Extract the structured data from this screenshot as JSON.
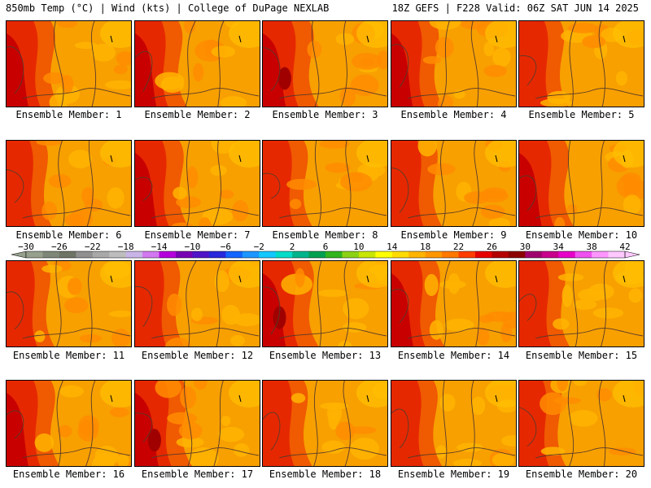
{
  "header": {
    "left": "850mb Temp (°C) | Wind (kts) | College of DuPage NEXLAB",
    "right": "18Z GEFS | F228 Valid: 06Z SAT JUN 14 2025"
  },
  "member_caption_prefix": "Ensemble Member: ",
  "members": [
    {
      "id": 1,
      "heat": 0.85
    },
    {
      "id": 2,
      "heat": 0.8
    },
    {
      "id": 3,
      "heat": 0.95
    },
    {
      "id": 4,
      "heat": 0.8
    },
    {
      "id": 5,
      "heat": 0.7
    },
    {
      "id": 6,
      "heat": 0.55
    },
    {
      "id": 7,
      "heat": 0.85
    },
    {
      "id": 8,
      "heat": 0.7
    },
    {
      "id": 9,
      "heat": 0.75
    },
    {
      "id": 10,
      "heat": 0.9
    },
    {
      "id": 11,
      "heat": 0.65
    },
    {
      "id": 12,
      "heat": 0.7
    },
    {
      "id": 13,
      "heat": 0.95
    },
    {
      "id": 14,
      "heat": 0.85
    },
    {
      "id": 15,
      "heat": 0.75
    },
    {
      "id": 16,
      "heat": 0.85
    },
    {
      "id": 17,
      "heat": 1.0
    },
    {
      "id": 18,
      "heat": 0.7
    },
    {
      "id": 19,
      "heat": 0.75
    },
    {
      "id": 20,
      "heat": 0.6
    }
  ],
  "colorbar": {
    "labels": [
      "−30",
      "−26",
      "−22",
      "−18",
      "−14",
      "−10",
      "−6",
      "−2",
      "2",
      "6",
      "10",
      "14",
      "18",
      "22",
      "26",
      "30",
      "34",
      "38",
      "42"
    ],
    "colors": [
      "#96a08c",
      "#7f8779",
      "#6e7466",
      "#909090",
      "#a8a8a8",
      "#bdbdbd",
      "#c8b4e6",
      "#d278f0",
      "#b400dc",
      "#7800b4",
      "#5014c8",
      "#2828dc",
      "#1464ff",
      "#1e96ff",
      "#14c8ff",
      "#00dcc8",
      "#00b48c",
      "#00a050",
      "#32b41e",
      "#8cd214",
      "#c8e600",
      "#ffff00",
      "#ffdc00",
      "#ffb400",
      "#ff9600",
      "#ff7800",
      "#ff3c00",
      "#e60000",
      "#b40000",
      "#8c0000",
      "#a0006e",
      "#c8008c",
      "#e600c8",
      "#f050f0",
      "#ff96ff",
      "#ffc8ff"
    ]
  }
}
